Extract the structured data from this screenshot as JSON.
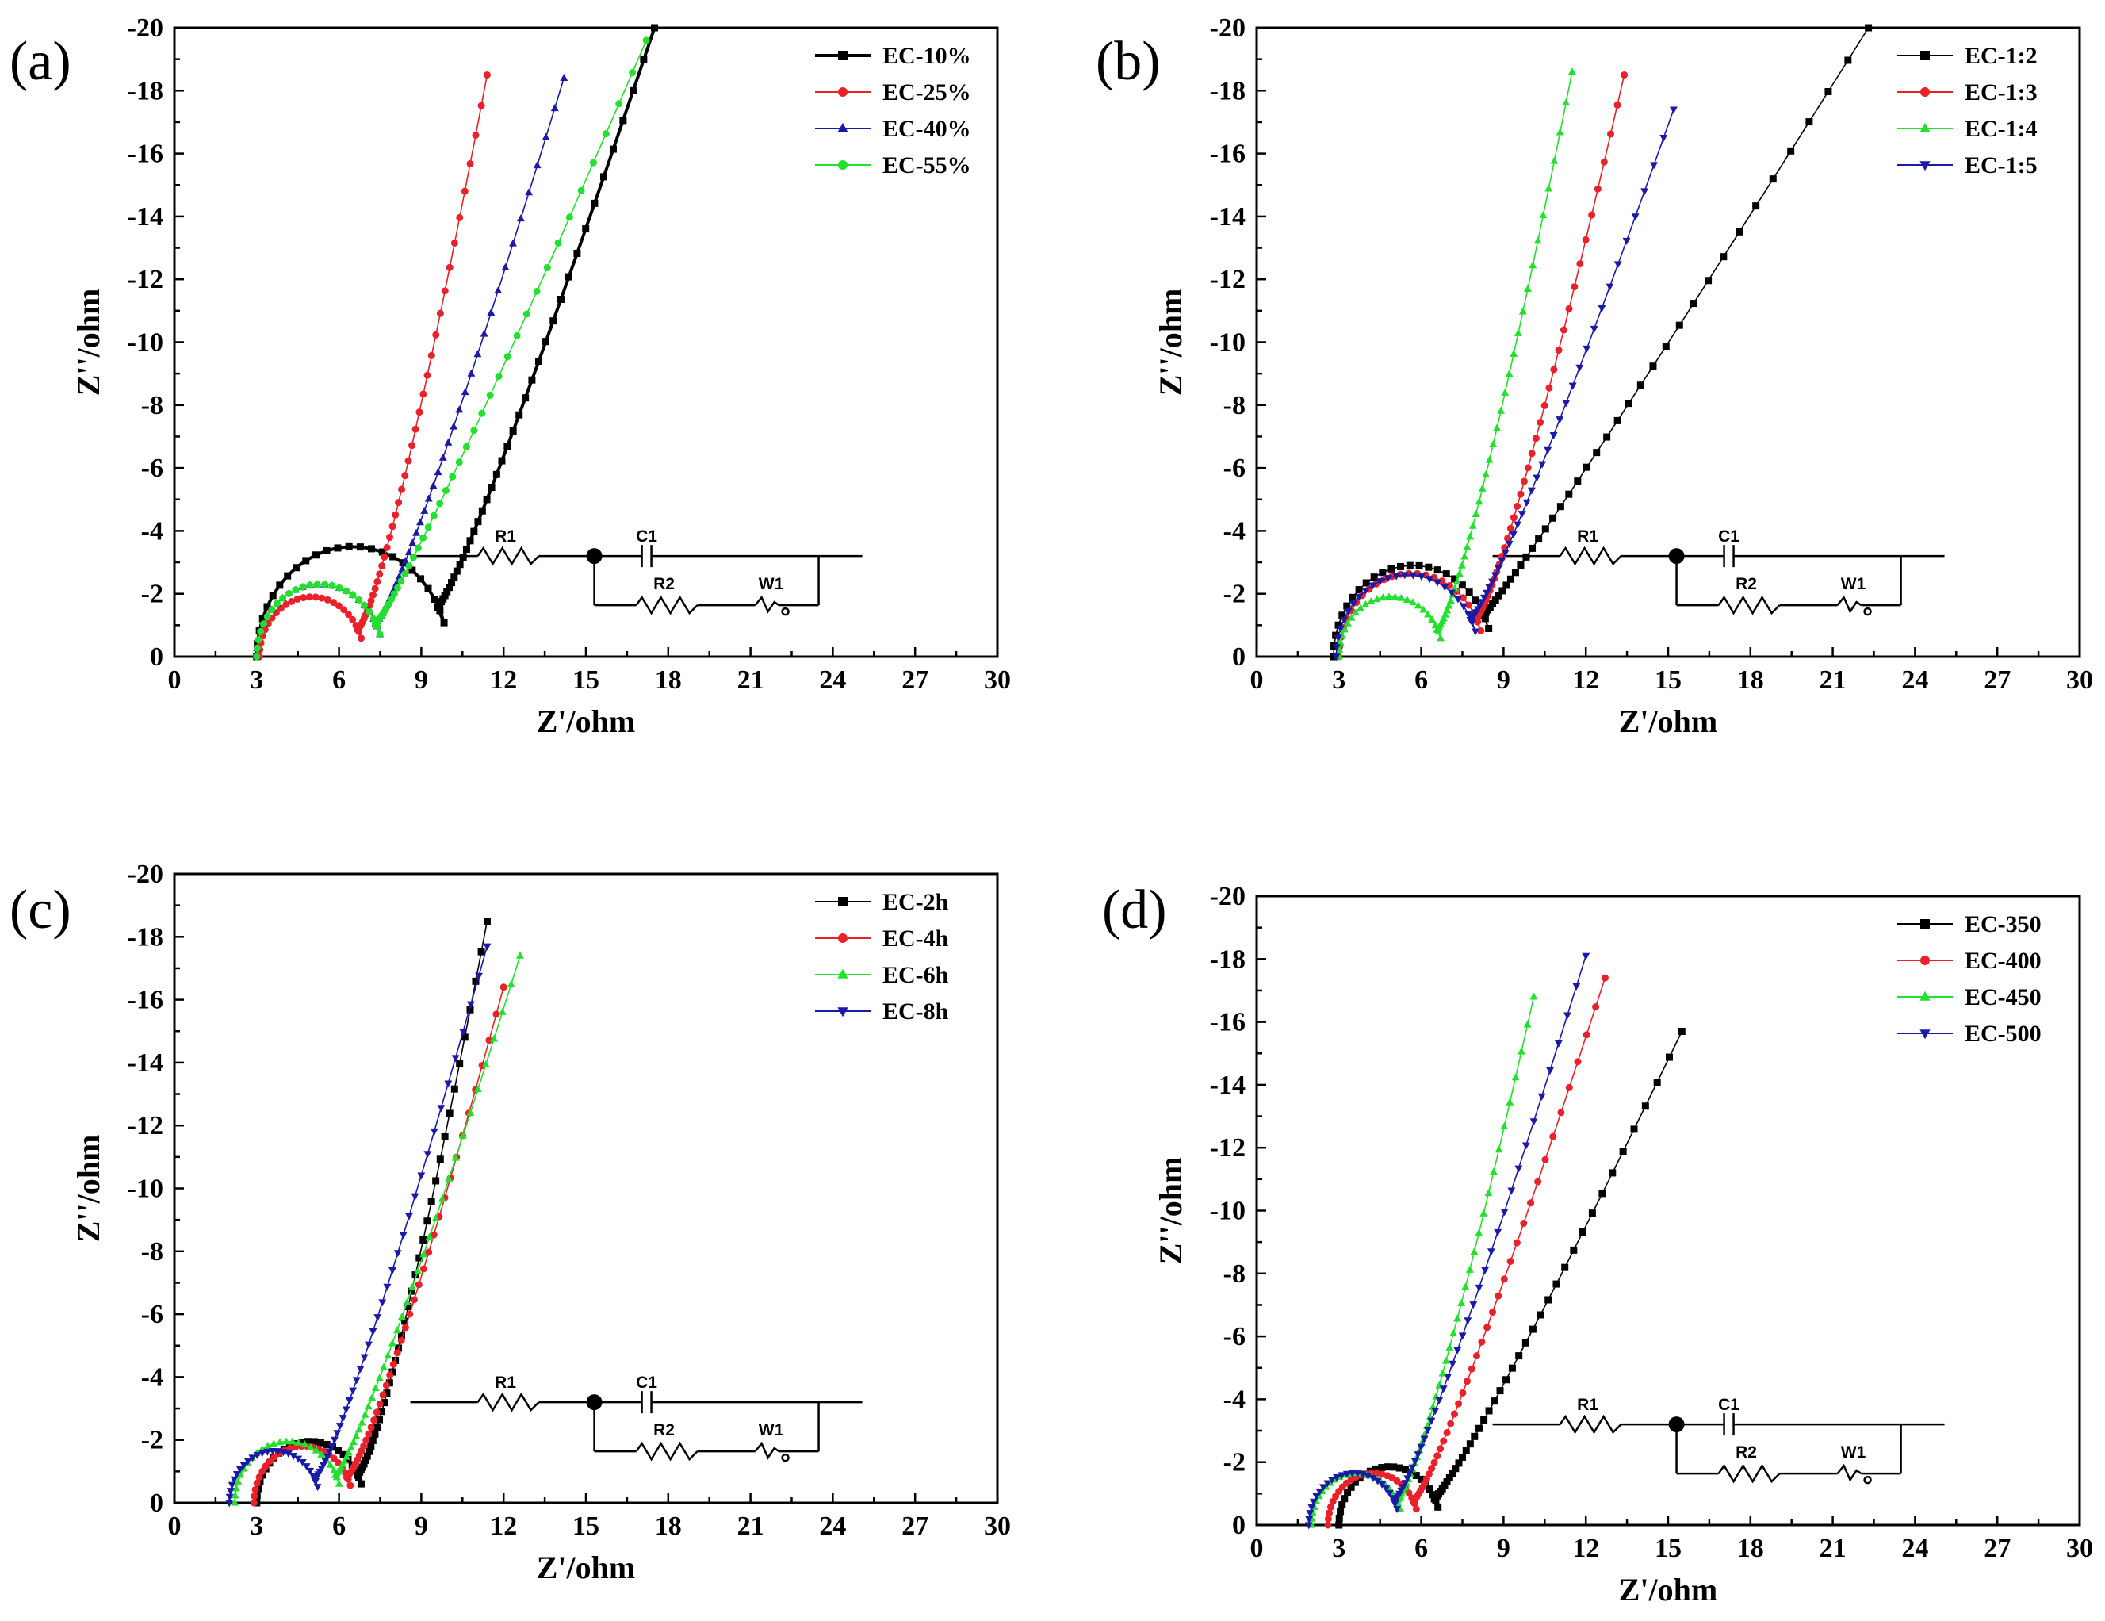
{
  "chart_data": [
    {
      "type": "scatter",
      "panel_label": "(a)",
      "xlabel": "Z'/ohm",
      "ylabel": "Z''/ohm",
      "xlim": [
        0,
        30
      ],
      "ylim": [
        0,
        -20
      ],
      "xticks": [
        0,
        3,
        6,
        9,
        12,
        15,
        18,
        21,
        24,
        27,
        30
      ],
      "yticks": [
        0,
        -2,
        -4,
        -6,
        -8,
        -10,
        -12,
        -14,
        -16,
        -18,
        -20
      ],
      "legend_position": "top-right",
      "series": [
        {
          "name": "EC-10%",
          "color": "#000000",
          "marker": "square",
          "r0": 3.0,
          "r1": 10.0,
          "tail_x": 17.5,
          "tail_y": -20.0,
          "bold": true
        },
        {
          "name": "EC-25%",
          "color": "#e8212a",
          "marker": "circle",
          "r0": 3.1,
          "r1": 6.9,
          "tail_x": 11.4,
          "tail_y": -18.5
        },
        {
          "name": "EC-40%",
          "color": "#1a1aa6",
          "marker": "triangle-up",
          "r0": 3.0,
          "r1": 7.6,
          "tail_x": 14.2,
          "tail_y": -18.4
        },
        {
          "name": "EC-55%",
          "color": "#22e02e",
          "marker": "circle",
          "r0": 3.0,
          "r1": 7.6,
          "tail_x": 17.2,
          "tail_y": -19.6
        }
      ],
      "circuit": {
        "labels": [
          "R1",
          "C1",
          "R2",
          "W1"
        ]
      }
    },
    {
      "type": "scatter",
      "panel_label": "(b)",
      "xlabel": "Z'/ohm",
      "ylabel": "Z''/ohm",
      "xlim": [
        0,
        30
      ],
      "ylim": [
        0,
        -20
      ],
      "xticks": [
        0,
        3,
        6,
        9,
        12,
        15,
        18,
        21,
        24,
        27,
        30
      ],
      "yticks": [
        0,
        -2,
        -4,
        -6,
        -8,
        -10,
        -12,
        -14,
        -16,
        -18,
        -20
      ],
      "legend_position": "top-right",
      "series": [
        {
          "name": "EC-1:2",
          "color": "#000000",
          "marker": "square",
          "r0": 2.8,
          "r1": 8.6,
          "tail_x": 22.3,
          "tail_y": -20.0
        },
        {
          "name": "EC-1:3",
          "color": "#e8212a",
          "marker": "circle",
          "r0": 3.0,
          "r1": 8.3,
          "tail_x": 13.4,
          "tail_y": -18.5
        },
        {
          "name": "EC-1:4",
          "color": "#22e02e",
          "marker": "triangle-up",
          "r0": 3.0,
          "r1": 6.8,
          "tail_x": 11.5,
          "tail_y": -18.6
        },
        {
          "name": "EC-1:5",
          "color": "#1a1aa6",
          "marker": "triangle-down",
          "r0": 2.9,
          "r1": 8.1,
          "tail_x": 15.2,
          "tail_y": -17.4
        }
      ],
      "circuit": {
        "labels": [
          "R1",
          "C1",
          "R2",
          "W1"
        ]
      }
    },
    {
      "type": "scatter",
      "panel_label": "(c)",
      "xlabel": "Z'/ohm",
      "ylabel": "Z''/ohm",
      "xlim": [
        0,
        30
      ],
      "ylim": [
        0,
        -20
      ],
      "xticks": [
        0,
        3,
        6,
        9,
        12,
        15,
        18,
        21,
        24,
        27,
        30
      ],
      "yticks": [
        0,
        -2,
        -4,
        -6,
        -8,
        -10,
        -12,
        -14,
        -16,
        -18,
        -20
      ],
      "legend_position": "top-right",
      "series": [
        {
          "name": "EC-2h",
          "color": "#000000",
          "marker": "square",
          "r0": 3.0,
          "r1": 6.9,
          "tail_x": 11.4,
          "tail_y": -18.5
        },
        {
          "name": "EC-4h",
          "color": "#e8212a",
          "marker": "circle",
          "r0": 2.9,
          "r1": 6.5,
          "tail_x": 12.0,
          "tail_y": -16.4
        },
        {
          "name": "EC-6h",
          "color": "#22e02e",
          "marker": "triangle-up",
          "r0": 2.2,
          "r1": 6.1,
          "tail_x": 12.6,
          "tail_y": -17.4
        },
        {
          "name": "EC-8h",
          "color": "#1a1aa6",
          "marker": "triangle-down",
          "r0": 2.0,
          "r1": 5.3,
          "tail_x": 11.4,
          "tail_y": -17.7
        }
      ],
      "circuit": {
        "labels": [
          "R1",
          "C1",
          "R2",
          "W1"
        ]
      }
    },
    {
      "type": "scatter",
      "panel_label": "(d)",
      "xlabel": "Z'/ohm",
      "ylabel": "Z''/ohm",
      "xlim": [
        0,
        30
      ],
      "ylim": [
        0,
        -20
      ],
      "xticks": [
        0,
        3,
        6,
        9,
        12,
        15,
        18,
        21,
        24,
        27,
        30
      ],
      "yticks": [
        0,
        -2,
        -4,
        -6,
        -8,
        -10,
        -12,
        -14,
        -16,
        -18,
        -20
      ],
      "legend_position": "top-right",
      "series": [
        {
          "name": "EC-350",
          "color": "#000000",
          "marker": "square",
          "r0": 3.0,
          "r1": 6.7,
          "tail_x": 15.5,
          "tail_y": -15.7
        },
        {
          "name": "EC-400",
          "color": "#e8212a",
          "marker": "circle",
          "r0": 2.6,
          "r1": 5.9,
          "tail_x": 12.7,
          "tail_y": -17.4
        },
        {
          "name": "EC-450",
          "color": "#22e02e",
          "marker": "triangle-up",
          "r0": 2.0,
          "r1": 5.3,
          "tail_x": 10.1,
          "tail_y": -16.8
        },
        {
          "name": "EC-500",
          "color": "#1a1aa6",
          "marker": "triangle-down",
          "r0": 1.9,
          "r1": 5.2,
          "tail_x": 12.0,
          "tail_y": -18.1
        }
      ],
      "circuit": {
        "labels": [
          "R1",
          "C1",
          "R2",
          "W1"
        ]
      }
    }
  ]
}
